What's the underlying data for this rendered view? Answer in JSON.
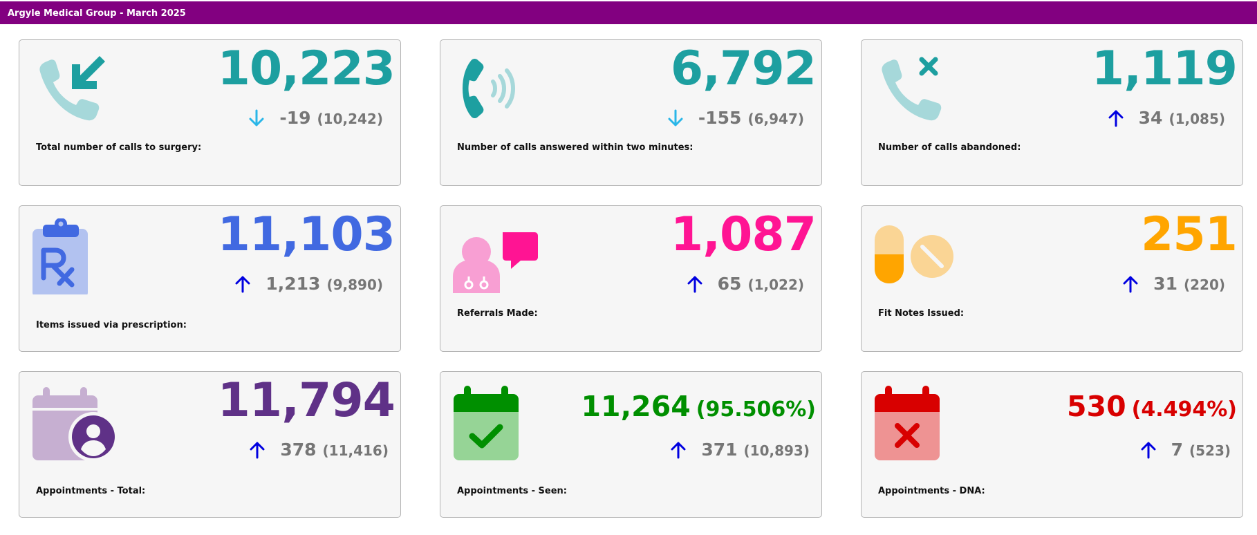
{
  "header": {
    "title": "Argyle Medical Group - March 2025",
    "color": "#820080"
  },
  "cards": [
    {
      "label": "Total number of calls to surgery:",
      "value": "10,223",
      "change": "-19",
      "previous": "(10,242)",
      "trend": "down",
      "value_color": "#1d9fa0",
      "icon": "incoming-call-icon"
    },
    {
      "label": "Number of calls answered within two minutes:",
      "value": "6,792",
      "change": "-155",
      "previous": "(6,947)",
      "trend": "down",
      "value_color": "#1d9fa0",
      "icon": "phone-ringing-icon"
    },
    {
      "label": "Number of calls abandoned:",
      "value": "1,119",
      "change": "34",
      "previous": "(1,085)",
      "trend": "up",
      "value_color": "#1d9fa0",
      "icon": "missed-call-icon"
    },
    {
      "label": "Items issued via prescription:",
      "value": "11,103",
      "change": "1,213",
      "previous": "(9,890)",
      "trend": "up",
      "value_color": "#4169e1",
      "icon": "prescription-clipboard-icon"
    },
    {
      "label": "Referrals Made:",
      "value": "1,087",
      "change": "65",
      "previous": "(1,022)",
      "trend": "up",
      "value_color": "#ff1493",
      "icon": "doctor-chat-icon"
    },
    {
      "label": "Fit Notes Issued:",
      "value": "251",
      "change": "31",
      "previous": "(220)",
      "trend": "up",
      "value_color": "#ffa500",
      "icon": "pills-icon"
    },
    {
      "label": "Appointments - Total:",
      "value": "11,794",
      "change": "378",
      "previous": "(11,416)",
      "trend": "up",
      "value_color": "#5f3187",
      "icon": "calendar-user-icon"
    },
    {
      "label": "Appointments - Seen:",
      "value": "11,264",
      "percent": "(95.506%)",
      "change": "371",
      "previous": "(10,893)",
      "trend": "up",
      "value_color": "#008f00",
      "icon": "calendar-check-icon"
    },
    {
      "label": "Appointments - DNA:",
      "value": "530",
      "percent": "(4.494%)",
      "change": "7",
      "previous": "(523)",
      "trend": "up",
      "value_color": "#d80000",
      "icon": "calendar-cross-icon"
    }
  ],
  "colors": {
    "up_arrow": "#0000e0",
    "down_arrow": "#29b6e8",
    "change_text": "#767676"
  }
}
